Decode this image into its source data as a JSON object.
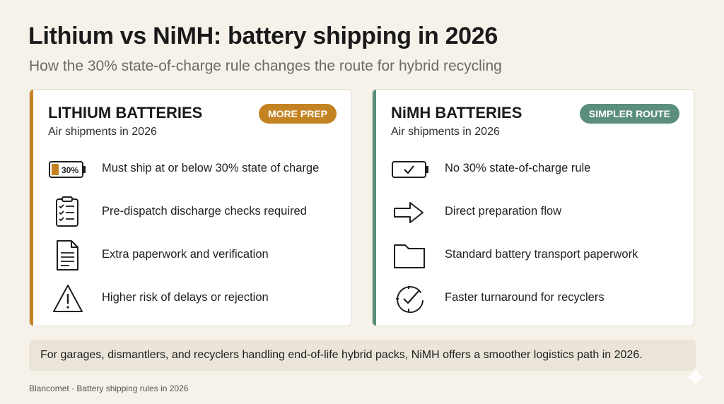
{
  "title": "Lithium vs NiMH: battery shipping in 2026",
  "subtitle": "How the 30% state-of-charge rule changes the route for hybrid recycling",
  "colors": {
    "lithium_accent": "#c48322",
    "nimh_accent": "#5b8f7c",
    "background": "#f6f2ea"
  },
  "lithium": {
    "title": "LITHIUM BATTERIES",
    "subtitle": "Air shipments in 2026",
    "badge": "MORE PREP",
    "battery_label": "30%",
    "items": [
      {
        "icon": "battery-30-icon",
        "text": "Must ship at or below 30% state of charge"
      },
      {
        "icon": "checklist-icon",
        "text": "Pre-dispatch discharge checks required"
      },
      {
        "icon": "document-icon",
        "text": "Extra paperwork and verification"
      },
      {
        "icon": "warning-icon",
        "text": "Higher risk of delays or rejection"
      }
    ]
  },
  "nimh": {
    "title": "NiMH BATTERIES",
    "subtitle": "Air shipments in 2026",
    "badge": "SIMPLER ROUTE",
    "items": [
      {
        "icon": "battery-check-icon",
        "text": "No 30% state-of-charge rule"
      },
      {
        "icon": "arrow-right-icon",
        "text": "Direct preparation flow"
      },
      {
        "icon": "folder-icon",
        "text": "Standard battery transport paperwork"
      },
      {
        "icon": "clock-check-icon",
        "text": "Faster turnaround for recyclers"
      }
    ]
  },
  "footer": "For garages, dismantlers, and recyclers handling end-of-life hybrid packs, NiMH offers a smoother logistics path in 2026.",
  "credit": "Blancomet · Battery shipping rules in 2026"
}
